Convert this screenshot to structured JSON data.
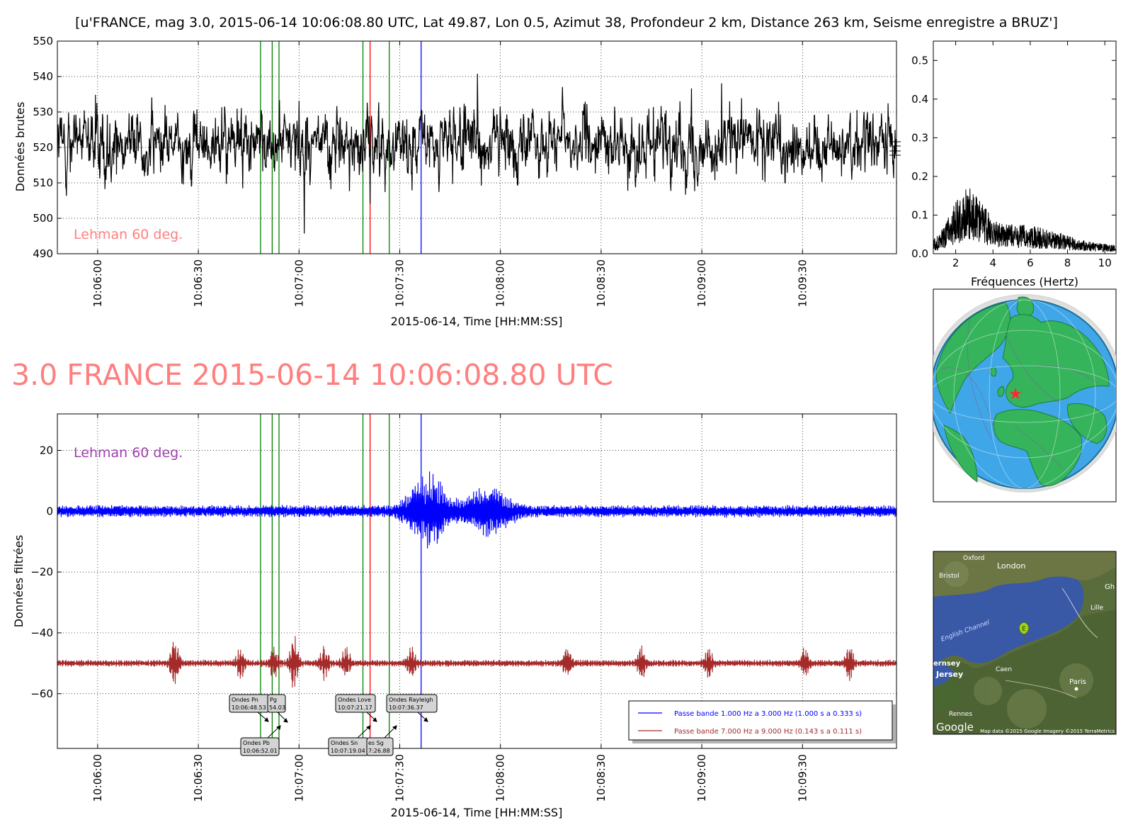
{
  "header": {
    "title": "[u'FRANCE, mag 3.0, 2015-06-14 10:06:08.80 UTC, Lat 49.87, Lon 0.5, Azimut  38, Profondeur 2 km, Distance   263 km, Seisme enregistre a BRUZ']",
    "big_title": "3.0 FRANCE 2015-06-14 10:06:08.80 UTC"
  },
  "colors": {
    "green": "#007f00",
    "red": "#ff0000",
    "blue": "#0000ff",
    "darkred": "#a52a2a",
    "pink": "#ff7f7f",
    "purple": "#a040b0"
  },
  "chart_data": [
    {
      "type": "line",
      "panel": "raw",
      "ylabel": "Données brutes",
      "xlabel": "2015-06-14, Time [HH:MM:SS]",
      "ylim": [
        490,
        550
      ],
      "yticks": [
        "490",
        "500",
        "510",
        "520",
        "530",
        "540",
        "550"
      ],
      "x_start": "10:05:48",
      "x_end": "10:09:58",
      "xticks": [
        "10:06:00",
        "10:06:30",
        "10:07:00",
        "10:07:30",
        "10:08:00",
        "10:08:30",
        "10:09:00",
        "10:09:30"
      ],
      "annotation": "Lehman 60 deg.",
      "grid": true,
      "series": [
        {
          "description": "seismic trace, mean ~521, range ~495 to 548"
        }
      ]
    },
    {
      "type": "line",
      "panel": "spectrum",
      "xlabel": "Fréquences (Hertz)",
      "xlim": [
        0.8,
        10.6
      ],
      "xticks": [
        "2",
        "4",
        "6",
        "8",
        "10"
      ],
      "ylim": [
        0,
        0.55
      ],
      "yticks": [
        "0.0",
        "0.1",
        "0.2",
        "0.3",
        "0.4",
        "0.5"
      ]
    },
    {
      "type": "line",
      "panel": "filtered",
      "ylabel": "Données filtrées",
      "xlabel": "2015-06-14, Time [HH:MM:SS]",
      "ylim": [
        -78,
        32
      ],
      "yticks": [
        "20",
        "0",
        "−20",
        "−40",
        "−60"
      ],
      "xticks": [
        "10:06:00",
        "10:06:30",
        "10:07:00",
        "10:07:30",
        "10:08:00",
        "10:08:30",
        "10:09:00",
        "10:09:30"
      ],
      "annotation": "Lehman 60 deg.",
      "grid": true,
      "series": [
        {
          "name": "Passe bande 1.000 Hz a 3.000 Hz (1.000 s a 0.333 s)",
          "offset": 0
        },
        {
          "name": "Passe bande 7.000 Hz a 9.000 Hz (0.143 s a 0.111 s)",
          "offset": -50
        }
      ]
    }
  ],
  "phases": [
    {
      "name": "Pn",
      "time": "10:06:48.53",
      "color": "green"
    },
    {
      "name": "Pb",
      "time": "10:06:52.01",
      "color": "green"
    },
    {
      "name": "Pg",
      "time": "10:06:54.03",
      "color": "green"
    },
    {
      "name": "Sn",
      "time": "10:07:19.04",
      "color": "green"
    },
    {
      "name": "Love",
      "time": "10:07:21.17",
      "color": "red"
    },
    {
      "name": "Sg",
      "time": "10:07:26.88",
      "color": "green"
    },
    {
      "name": "Rayleigh",
      "time": "10:07:36.37",
      "color": "blue"
    }
  ],
  "boxes": {
    "pn": {
      "l1": "Ondes Pn",
      "l2": "10:06:48.53"
    },
    "pg": {
      "l1": "Pg",
      "l2": "54.03"
    },
    "pb": {
      "l1": "Ondes Pb",
      "l2": "10:06:52.01"
    },
    "love": {
      "l1": "Ondes Love",
      "l2": "10:07:21.17"
    },
    "rayleigh": {
      "l1": "Ondes Rayleigh",
      "l2": "10:07:36.37"
    },
    "sn": {
      "l1": "Ondes Sn",
      "l2": "10:07:19.04"
    },
    "sg": {
      "l1": "es Sg",
      "l2": "7:26.88"
    }
  },
  "legend": {
    "blue_label": "Passe bande 1.000 Hz a 3.000 Hz (1.000 s a 0.333 s)",
    "red_label": "Passe bande 7.000 Hz a 9.000 Hz (0.143 s a 0.111 s)"
  },
  "map": {
    "labels": [
      "Oxford",
      "London",
      "Bristol",
      "Gh",
      "Lille",
      "English Channel",
      "ernsey",
      "Jersey",
      "Caen",
      "Paris",
      "Rennes"
    ],
    "marker": "E",
    "logo": "Google",
    "credit": "Map data ©2015 Google  Imagery ©2015 TerraMetrics"
  }
}
